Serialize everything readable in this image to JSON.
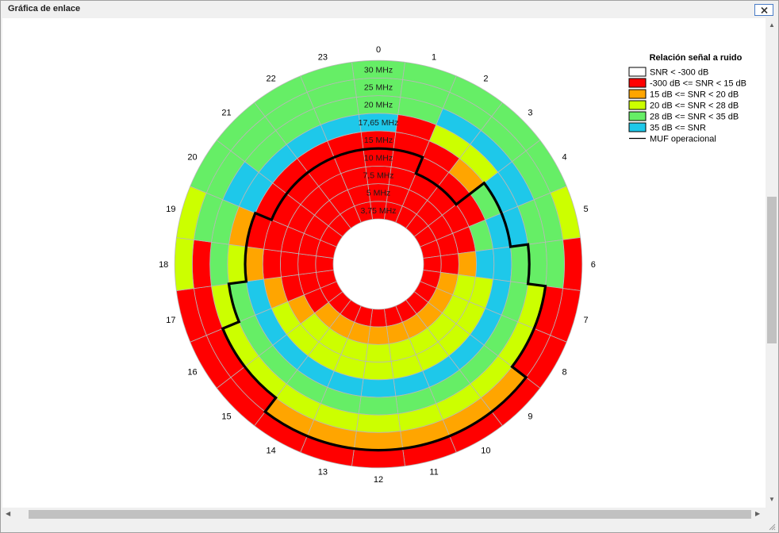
{
  "window": {
    "title": "Gráfica de enlace",
    "close_glyph": "✕"
  },
  "colors": {
    "white": "#ffffff",
    "red": "#ff0000",
    "orange": "#ffa500",
    "yellow": "#ccff00",
    "green": "#66ee66",
    "blue": "#1ec8ea",
    "muf": "#000000"
  },
  "chart_data": {
    "type": "heatmap",
    "title": "Relación señal a ruido",
    "hour_labels": [
      "0",
      "1",
      "2",
      "3",
      "4",
      "5",
      "6",
      "7",
      "8",
      "9",
      "10",
      "11",
      "12",
      "13",
      "14",
      "15",
      "16",
      "17",
      "18",
      "19",
      "20",
      "21",
      "22",
      "23"
    ],
    "frequency_labels": [
      "3,75 MHz",
      "5 MHz",
      "7,5 MHz",
      "10 MHz",
      "15 MHz",
      "17,65 MHz",
      "20 MHz",
      "25 MHz",
      "30 MHz"
    ],
    "legend": [
      {
        "label": "SNR < -300 dB",
        "color": "white"
      },
      {
        "label": "-300 dB <= SNR < 15 dB",
        "color": "red"
      },
      {
        "label": "15 dB <= SNR < 20 dB",
        "color": "orange"
      },
      {
        "label": "20 dB <= SNR < 28 dB",
        "color": "yellow"
      },
      {
        "label": "28 dB <= SNR < 35 dB",
        "color": "green"
      },
      {
        "label": "35 dB <= SNR",
        "color": "blue"
      },
      {
        "label": "MUF operacional",
        "color": "muf"
      }
    ],
    "snr_grid": [
      "RRRRRRRRRRRRRRRRRRRRRRRR",
      "RRRRRRROOOOOOOOORRRRRRRR",
      "RRRRRROYYYYYYYYYORRRRRRR",
      "RRRRRGBYYYYYYYYYYORRRRRR",
      "RRROGBBBBBBBBBBBBBORRRRR",
      "BRYYBBGGGGGGGGGGGGYOBBBB",
      "GGBBBGGYYYYYYYYYYYGGBGGG",
      "GGGGGGGRROOOOOORRRRGGGGG",
      "GGGGGYRRRRRRRRRRRRYYGGGG"
    ],
    "muf_band_ring": [
      4,
      4,
      3,
      3,
      5,
      5,
      6,
      7,
      7,
      8,
      8,
      8,
      8,
      8,
      8,
      7,
      7,
      6,
      5,
      5,
      4,
      4,
      4,
      4
    ]
  }
}
